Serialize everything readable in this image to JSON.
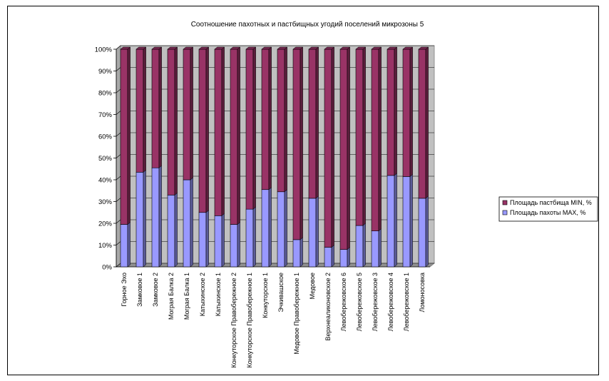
{
  "chart_data": {
    "type": "bar",
    "stacked": "percent",
    "title": "Соотношение пахотных и пастбищных угодий поселений микрозоны 5",
    "y_ticks": [
      "0%",
      "10%",
      "20%",
      "30%",
      "40%",
      "50%",
      "60%",
      "70%",
      "80%",
      "90%",
      "100%"
    ],
    "ylim": [
      0,
      100
    ],
    "legend_position": "right",
    "categories": [
      "Горное Эхо",
      "Замковое 1",
      "Замковое 2",
      "Мограя Балка 2",
      "Мограя Балка 1",
      "Катыхинское 2",
      "Катыхинское 1",
      "Конкуторское Правобережное 2",
      "Конкуторское Правобережное 1",
      "Конкуторское 1",
      "Эчкивашское",
      "Медовое Правобережное 1",
      "Медовое",
      "Верхнеаликоновское 2",
      "Левобережовское 6",
      "Левобережовское 5",
      "Левобережовское 3",
      "Левобережовское 4",
      "Левобережовское 1",
      "Ломоносовка"
    ],
    "series": [
      {
        "name": "Площадь пахоты MAX, %",
        "color": "#9999ff",
        "values": [
          19.5,
          43.5,
          45.5,
          33,
          40,
          25,
          23.5,
          19.5,
          26.5,
          35.5,
          34.5,
          12.5,
          31.5,
          9,
          8,
          19,
          16.5,
          42,
          41.5,
          31.5
        ]
      },
      {
        "name": "Площадь пастбища MIN, %",
        "color": "#993366",
        "values": [
          80.5,
          56.5,
          54.5,
          67,
          60,
          75,
          76.5,
          80.5,
          73.5,
          64.5,
          65.5,
          87.5,
          68.5,
          91,
          92,
          81,
          83.5,
          58,
          58.5,
          68.5
        ]
      }
    ]
  }
}
